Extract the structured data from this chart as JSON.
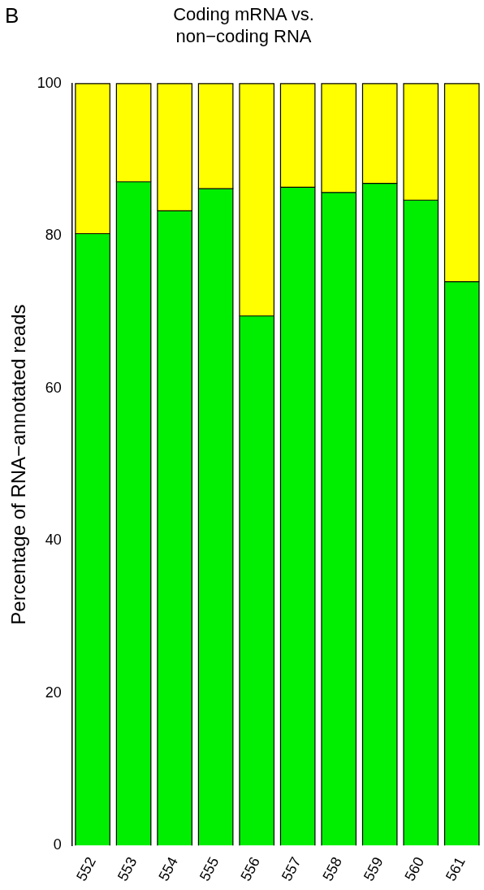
{
  "chart_data": {
    "type": "bar",
    "stacked": true,
    "title": "Coding mRNA vs.\nnon−coding RNA",
    "ylabel": "Percentage of RNA−annotated reads",
    "annotations": [
      "B"
    ],
    "categories": [
      "552",
      "553",
      "554",
      "555",
      "556",
      "557",
      "558",
      "559",
      "560",
      "561"
    ],
    "series": [
      {
        "color": "#00ee00",
        "values": [
          80.3,
          87.1,
          83.3,
          86.2,
          69.5,
          86.4,
          85.7,
          86.9,
          84.7,
          74.0
        ]
      },
      {
        "color": "#ffff00",
        "values": [
          19.7,
          12.9,
          16.7,
          13.8,
          30.5,
          13.6,
          14.3,
          13.1,
          15.3,
          26.0
        ]
      }
    ],
    "ylim": [
      0,
      100
    ],
    "yticks": [
      0,
      20,
      40,
      60,
      80,
      100
    ],
    "grid": false,
    "legend": false
  }
}
